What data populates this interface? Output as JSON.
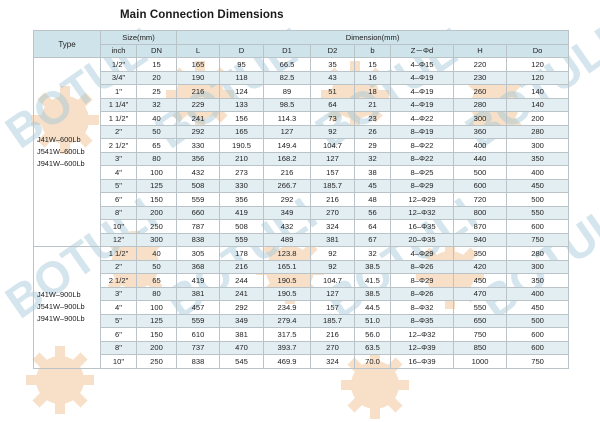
{
  "title": "Main Connection Dimensions",
  "headers": {
    "type": "Type",
    "size": "Size(mm)",
    "dimension": "Dimension(mm)",
    "inch": "inch",
    "dn": "DN",
    "columns": [
      "L",
      "D",
      "D1",
      "D2",
      "b",
      "Z－Φd",
      "H",
      "Do"
    ]
  },
  "groups": [
    {
      "models": [
        "J41W–600Lb",
        "J541W–600Lb",
        "J941W–600Lb"
      ],
      "model_markers": [
        "H",
        "Y"
      ],
      "rows": [
        {
          "inch": "1/2\"",
          "dn": "15",
          "L": "165",
          "D": "95",
          "D1": "66.5",
          "D2": "35",
          "b": "15",
          "Z": "4–Φ15",
          "H": "220",
          "Do": "120"
        },
        {
          "inch": "3/4\"",
          "dn": "20",
          "L": "190",
          "D": "118",
          "D1": "82.5",
          "D2": "43",
          "b": "16",
          "Z": "4–Φ19",
          "H": "230",
          "Do": "120"
        },
        {
          "inch": "1\"",
          "dn": "25",
          "L": "216",
          "D": "124",
          "D1": "89",
          "D2": "51",
          "b": "18",
          "Z": "4–Φ19",
          "H": "260",
          "Do": "140"
        },
        {
          "inch": "1 1/4\"",
          "dn": "32",
          "L": "229",
          "D": "133",
          "D1": "98.5",
          "D2": "64",
          "b": "21",
          "Z": "4–Φ19",
          "H": "280",
          "Do": "140"
        },
        {
          "inch": "1 1/2\"",
          "dn": "40",
          "L": "241",
          "D": "156",
          "D1": "114.3",
          "D2": "73",
          "b": "23",
          "Z": "4–Φ22",
          "H": "300",
          "Do": "200"
        },
        {
          "inch": "2\"",
          "dn": "50",
          "L": "292",
          "D": "165",
          "D1": "127",
          "D2": "92",
          "b": "26",
          "Z": "8–Φ19",
          "H": "360",
          "Do": "280"
        },
        {
          "inch": "2 1/2\"",
          "dn": "65",
          "L": "330",
          "D": "190.5",
          "D1": "149.4",
          "D2": "104.7",
          "b": "29",
          "Z": "8–Φ22",
          "H": "400",
          "Do": "300"
        },
        {
          "inch": "3\"",
          "dn": "80",
          "L": "356",
          "D": "210",
          "D1": "168.2",
          "D2": "127",
          "b": "32",
          "Z": "8–Φ22",
          "H": "440",
          "Do": "350"
        },
        {
          "inch": "4\"",
          "dn": "100",
          "L": "432",
          "D": "273",
          "D1": "216",
          "D2": "157",
          "b": "38",
          "Z": "8–Φ25",
          "H": "500",
          "Do": "400"
        },
        {
          "inch": "5\"",
          "dn": "125",
          "L": "508",
          "D": "330",
          "D1": "266.7",
          "D2": "185.7",
          "b": "45",
          "Z": "8–Φ29",
          "H": "600",
          "Do": "450"
        },
        {
          "inch": "6\"",
          "dn": "150",
          "L": "559",
          "D": "356",
          "D1": "292",
          "D2": "216",
          "b": "48",
          "Z": "12–Φ29",
          "H": "720",
          "Do": "500"
        },
        {
          "inch": "8\"",
          "dn": "200",
          "L": "660",
          "D": "419",
          "D1": "349",
          "D2": "270",
          "b": "56",
          "Z": "12–Φ32",
          "H": "800",
          "Do": "550"
        },
        {
          "inch": "10\"",
          "dn": "250",
          "L": "787",
          "D": "508",
          "D1": "432",
          "D2": "324",
          "b": "64",
          "Z": "16–Φ35",
          "H": "870",
          "Do": "600"
        },
        {
          "inch": "12\"",
          "dn": "300",
          "L": "838",
          "D": "559",
          "D1": "489",
          "D2": "381",
          "b": "67",
          "Z": "20–Φ35",
          "H": "940",
          "Do": "750"
        }
      ]
    },
    {
      "models": [
        "J41W–900Lb",
        "J541W–900Lb",
        "J941W–900Lb"
      ],
      "model_markers": [
        "H",
        "Y"
      ],
      "rows": [
        {
          "inch": "1 1/2\"",
          "dn": "40",
          "L": "305",
          "D": "178",
          "D1": "123.8",
          "D2": "92",
          "b": "32",
          "Z": "4–Φ29",
          "H": "350",
          "Do": "280"
        },
        {
          "inch": "2\"",
          "dn": "50",
          "L": "368",
          "D": "216",
          "D1": "165.1",
          "D2": "92",
          "b": "38.5",
          "Z": "8–Φ26",
          "H": "420",
          "Do": "300"
        },
        {
          "inch": "2 1/2\"",
          "dn": "65",
          "L": "419",
          "D": "244",
          "D1": "190.5",
          "D2": "104.7",
          "b": "41.5",
          "Z": "8–Φ29",
          "H": "450",
          "Do": "350"
        },
        {
          "inch": "3\"",
          "dn": "80",
          "L": "381",
          "D": "241",
          "D1": "190.5",
          "D2": "127",
          "b": "38.5",
          "Z": "8–Φ26",
          "H": "470",
          "Do": "400"
        },
        {
          "inch": "4\"",
          "dn": "100",
          "L": "457",
          "D": "292",
          "D1": "234.9",
          "D2": "157",
          "b": "44.5",
          "Z": "8–Φ32",
          "H": "550",
          "Do": "450"
        },
        {
          "inch": "5\"",
          "dn": "125",
          "L": "559",
          "D": "349",
          "D1": "279.4",
          "D2": "185.7",
          "b": "51.0",
          "Z": "8–Φ35",
          "H": "650",
          "Do": "500"
        },
        {
          "inch": "6\"",
          "dn": "150",
          "L": "610",
          "D": "381",
          "D1": "317.5",
          "D2": "216",
          "b": "56.0",
          "Z": "12–Φ32",
          "H": "750",
          "Do": "600"
        },
        {
          "inch": "8\"",
          "dn": "200",
          "L": "737",
          "D": "470",
          "D1": "393.7",
          "D2": "270",
          "b": "63.5",
          "Z": "12–Φ39",
          "H": "850",
          "Do": "600"
        },
        {
          "inch": "10\"",
          "dn": "250",
          "L": "838",
          "D": "545",
          "D1": "469.9",
          "D2": "324",
          "b": "70.0",
          "Z": "16–Φ39",
          "H": "1000",
          "Do": "750"
        }
      ]
    }
  ],
  "watermark": {
    "text": "BOTULI",
    "text_color": "#9fc4d8",
    "gear_color": "#f2c79c"
  }
}
